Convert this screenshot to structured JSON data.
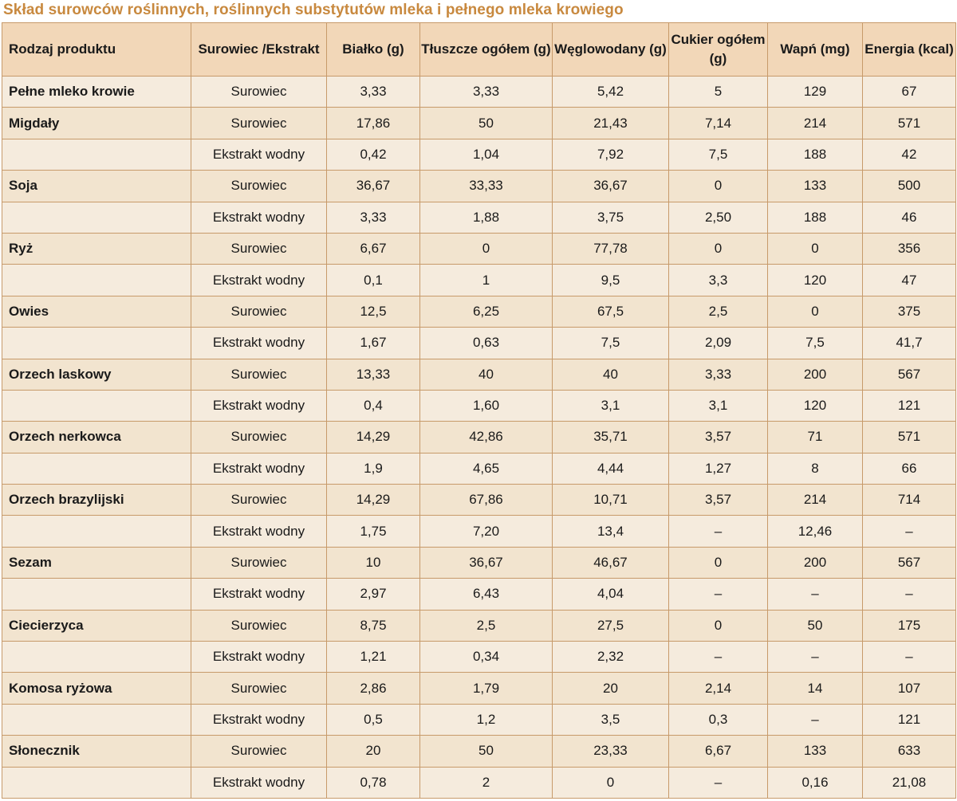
{
  "title": "Skład surowców roślinnych, roślinnych substytutów mleka i pełnego mleka krowiego",
  "headers": [
    "Rodzaj produktu",
    "Surowiec /Ekstrakt",
    "Białko (g)",
    "Tłuszcze ogółem (g)",
    "Węglowodany (g)",
    "Cukier ogółem (g)",
    "Wapń (mg)",
    "Energia (kcal)"
  ],
  "rows": [
    [
      "Pełne mleko krowie",
      "Surowiec",
      "3,33",
      "3,33",
      "5,42",
      "5",
      "129",
      "67"
    ],
    [
      "Migdały",
      "Surowiec",
      "17,86",
      "50",
      "21,43",
      "7,14",
      "214",
      "571"
    ],
    [
      "",
      "Ekstrakt wodny",
      "0,42",
      "1,04",
      "7,92",
      "7,5",
      "188",
      "42"
    ],
    [
      "Soja",
      "Surowiec",
      "36,67",
      "33,33",
      "36,67",
      "0",
      "133",
      "500"
    ],
    [
      "",
      "Ekstrakt wodny",
      "3,33",
      "1,88",
      "3,75",
      "2,50",
      "188",
      "46"
    ],
    [
      "Ryż",
      "Surowiec",
      "6,67",
      "0",
      "77,78",
      "0",
      "0",
      "356"
    ],
    [
      "",
      "Ekstrakt wodny",
      "0,1",
      "1",
      "9,5",
      "3,3",
      "120",
      "47"
    ],
    [
      "Owies",
      "Surowiec",
      "12,5",
      "6,25",
      "67,5",
      "2,5",
      "0",
      "375"
    ],
    [
      "",
      "Ekstrakt wodny",
      "1,67",
      "0,63",
      "7,5",
      "2,09",
      "7,5",
      "41,7"
    ],
    [
      "Orzech laskowy",
      "Surowiec",
      "13,33",
      "40",
      "40",
      "3,33",
      "200",
      "567"
    ],
    [
      "",
      "Ekstrakt wodny",
      "0,4",
      "1,60",
      "3,1",
      "3,1",
      "120",
      "121"
    ],
    [
      "Orzech nerkowca",
      "Surowiec",
      "14,29",
      "42,86",
      "35,71",
      "3,57",
      "71",
      "571"
    ],
    [
      "",
      "Ekstrakt wodny",
      "1,9",
      "4,65",
      "4,44",
      "1,27",
      "8",
      "66"
    ],
    [
      "Orzech brazylijski",
      "Surowiec",
      "14,29",
      "67,86",
      "10,71",
      "3,57",
      "214",
      "714"
    ],
    [
      "",
      "Ekstrakt wodny",
      "1,75",
      "7,20",
      "13,4",
      "–",
      "12,46",
      "–"
    ],
    [
      "Sezam",
      "Surowiec",
      "10",
      "36,67",
      "46,67",
      "0",
      "200",
      "567"
    ],
    [
      "",
      "Ekstrakt wodny",
      "2,97",
      "6,43",
      "4,04",
      "–",
      "–",
      "–"
    ],
    [
      "Ciecierzyca",
      "Surowiec",
      "8,75",
      "2,5",
      "27,5",
      "0",
      "50",
      "175"
    ],
    [
      "",
      "Ekstrakt wodny",
      "1,21",
      "0,34",
      "2,32",
      "–",
      "–",
      "–"
    ],
    [
      "Komosa ryżowa",
      "Surowiec",
      "2,86",
      "1,79",
      "20",
      "2,14",
      "14",
      "107"
    ],
    [
      "",
      "Ekstrakt wodny",
      "0,5",
      "1,2",
      "3,5",
      "0,3",
      "–",
      "121"
    ],
    [
      "Słonecznik",
      "Surowiec",
      "20",
      "50",
      "23,33",
      "6,67",
      "133",
      "633"
    ],
    [
      "",
      "Ekstrakt wodny",
      "0,78",
      "2",
      "0",
      "–",
      "0,16",
      "21,08"
    ]
  ]
}
